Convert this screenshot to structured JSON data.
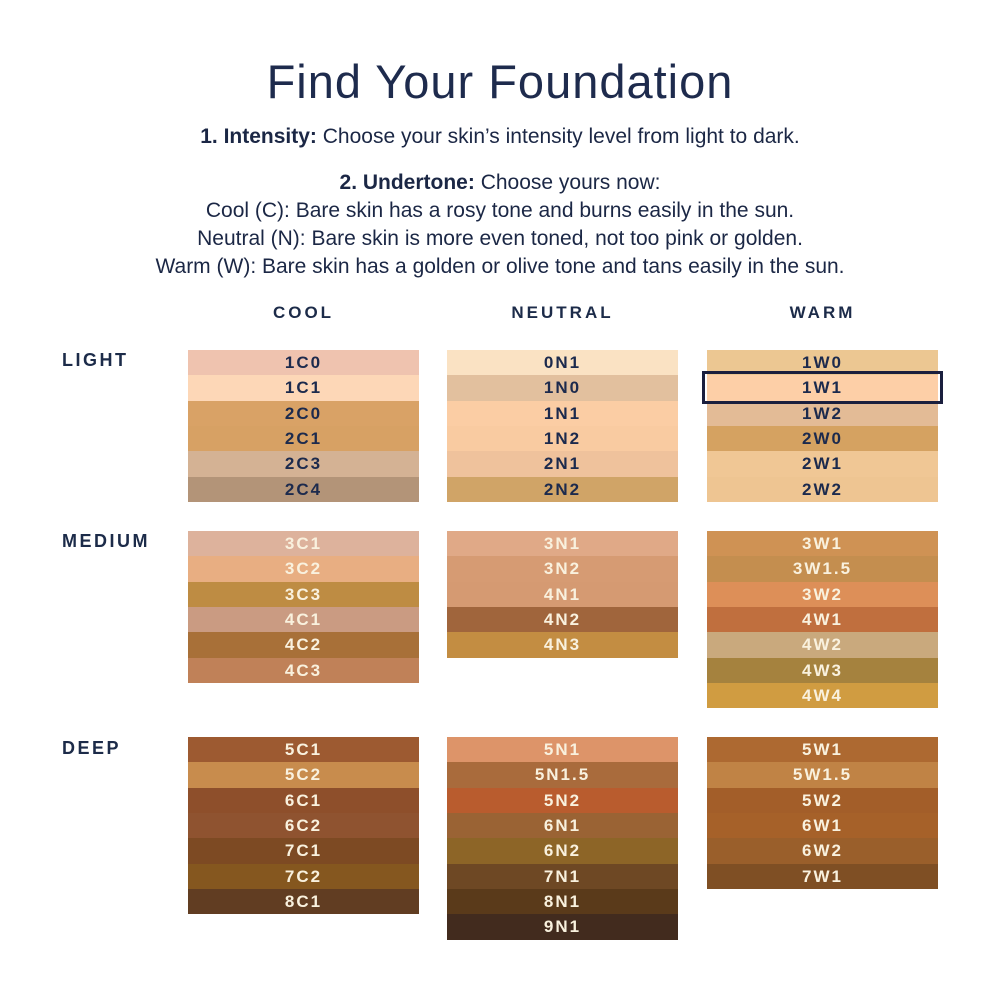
{
  "title": "Find Your Foundation",
  "instructions": {
    "step1": {
      "label": "1. Intensity:",
      "text": "Choose your skin’s intensity level from light to dark."
    },
    "step2": {
      "label": "2. Undertone:",
      "text": "Choose yours now:"
    },
    "undertone_cool": "Cool (C): Bare skin has a rosy tone and burns easily in the sun.",
    "undertone_neutral": "Neutral (N): Bare skin is more even toned, not too pink or golden.",
    "undertone_warm": "Warm (W): Bare skin has a golden or olive tone and tans easily in the sun."
  },
  "shade_grid": {
    "columns": [
      "COOL",
      "NEUTRAL",
      "WARM"
    ],
    "rows": [
      "LIGHT",
      "MEDIUM",
      "DEEP"
    ],
    "highlighted_shade": "1W1",
    "highlight_ring_color": "#1A1F3E",
    "swatch_label_colors": {
      "LIGHT": "#1C2A4D",
      "MEDIUM": "#F9F1DE",
      "DEEP": "#F9F1DE"
    },
    "cells": {
      "LIGHT": {
        "COOL": [
          {
            "shade": "1C0",
            "color": "#EFC3AF"
          },
          {
            "shade": "1C1",
            "color": "#FDD7B7"
          },
          {
            "shade": "2C0",
            "color": "#D9A266"
          },
          {
            "shade": "2C1",
            "color": "#D7A164"
          },
          {
            "shade": "2C3",
            "color": "#D4B294"
          },
          {
            "shade": "2C4",
            "color": "#B39478"
          }
        ],
        "NEUTRAL": [
          {
            "shade": "0N1",
            "color": "#FAE2C3"
          },
          {
            "shade": "1N0",
            "color": "#E2C09E"
          },
          {
            "shade": "1N1",
            "color": "#FBCDA4"
          },
          {
            "shade": "1N2",
            "color": "#F9CBA1"
          },
          {
            "shade": "2N1",
            "color": "#EFC29C"
          },
          {
            "shade": "2N2",
            "color": "#D0A467"
          }
        ],
        "WARM": [
          {
            "shade": "1W0",
            "color": "#ECC792"
          },
          {
            "shade": "1W1",
            "color": "#FDCFA7"
          },
          {
            "shade": "1W2",
            "color": "#E3BB96"
          },
          {
            "shade": "2W0",
            "color": "#D5A261"
          },
          {
            "shade": "2W1",
            "color": "#F0C795"
          },
          {
            "shade": "2W2",
            "color": "#EEC592"
          }
        ]
      },
      "MEDIUM": {
        "COOL": [
          {
            "shade": "3C1",
            "color": "#DDB29C"
          },
          {
            "shade": "3C2",
            "color": "#E8AE82"
          },
          {
            "shade": "3C3",
            "color": "#BE8C43"
          },
          {
            "shade": "4C1",
            "color": "#CA9B82"
          },
          {
            "shade": "4C2",
            "color": "#A87038"
          },
          {
            "shade": "4C3",
            "color": "#C08158"
          }
        ],
        "NEUTRAL": [
          {
            "shade": "3N1",
            "color": "#E0A987"
          },
          {
            "shade": "3N2",
            "color": "#D69B73"
          },
          {
            "shade": "4N1",
            "color": "#D59A72"
          },
          {
            "shade": "4N2",
            "color": "#A0653C"
          },
          {
            "shade": "4N3",
            "color": "#C38D42"
          }
        ],
        "WARM": [
          {
            "shade": "3W1",
            "color": "#CF9254"
          },
          {
            "shade": "3W1.5",
            "color": "#C48E4F"
          },
          {
            "shade": "3W2",
            "color": "#DD8F58"
          },
          {
            "shade": "4W1",
            "color": "#C06F3E"
          },
          {
            "shade": "4W2",
            "color": "#C9A97D"
          },
          {
            "shade": "4W3",
            "color": "#A5823E"
          },
          {
            "shade": "4W4",
            "color": "#D09C41"
          }
        ]
      },
      "DEEP": {
        "COOL": [
          {
            "shade": "5C1",
            "color": "#9D5A31"
          },
          {
            "shade": "5C2",
            "color": "#C88C4D"
          },
          {
            "shade": "6C1",
            "color": "#8E4F2B"
          },
          {
            "shade": "6C2",
            "color": "#8F5330"
          },
          {
            "shade": "7C1",
            "color": "#7D4A23"
          },
          {
            "shade": "7C2",
            "color": "#85571F"
          },
          {
            "shade": "8C1",
            "color": "#613D22"
          }
        ],
        "NEUTRAL": [
          {
            "shade": "5N1",
            "color": "#DD9469"
          },
          {
            "shade": "5N1.5",
            "color": "#A96B3C"
          },
          {
            "shade": "5N2",
            "color": "#B95C2E"
          },
          {
            "shade": "6N1",
            "color": "#9A6334"
          },
          {
            "shade": "6N2",
            "color": "#8D6527"
          },
          {
            "shade": "7N1",
            "color": "#6E4824"
          },
          {
            "shade": "8N1",
            "color": "#5A3A1A"
          },
          {
            "shade": "9N1",
            "color": "#422B1E"
          }
        ],
        "WARM": [
          {
            "shade": "5W1",
            "color": "#AD6931"
          },
          {
            "shade": "5W1.5",
            "color": "#C08345"
          },
          {
            "shade": "5W2",
            "color": "#A35E29"
          },
          {
            "shade": "6W1",
            "color": "#A66129"
          },
          {
            "shade": "6W2",
            "color": "#9A5F2B"
          },
          {
            "shade": "7W1",
            "color": "#7F4F24"
          }
        ]
      }
    }
  }
}
